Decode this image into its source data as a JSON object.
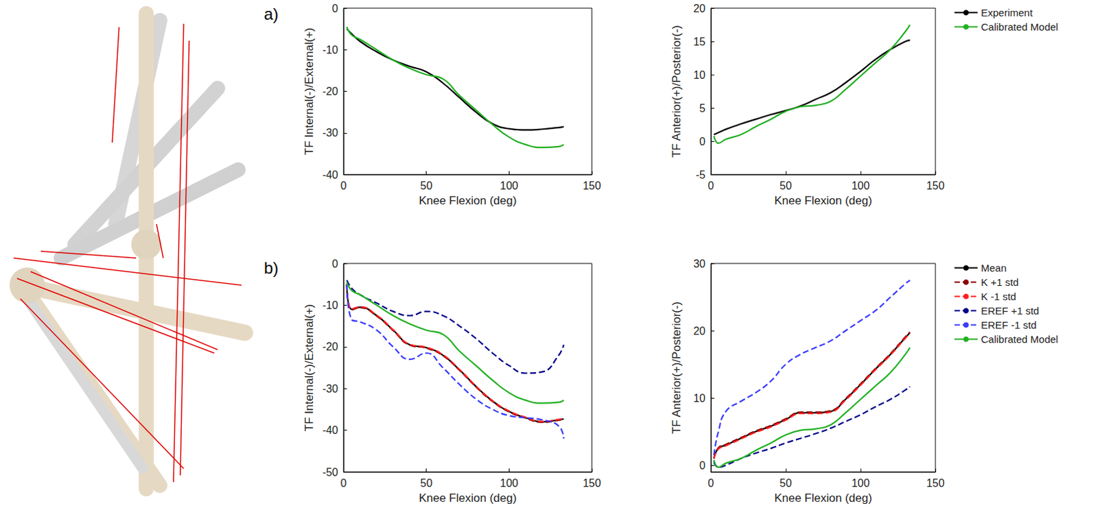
{
  "panel_labels": [
    "a)",
    "b)"
  ],
  "chart_data": [
    {
      "type": "line",
      "x_label": "Knee Flexion (deg)",
      "y_label": "TF Internal(-)/External(+)",
      "xlim": [
        0,
        150
      ],
      "xticks": [
        0,
        50,
        100,
        150
      ],
      "ylim": [
        -40,
        0
      ],
      "yticks": [
        -40,
        -30,
        -20,
        -10,
        0
      ],
      "grid": false,
      "x": [
        2,
        5,
        10,
        20,
        30,
        40,
        50,
        60,
        70,
        80,
        90,
        100,
        110,
        120,
        130,
        133
      ],
      "series": [
        {
          "name": "Experiment",
          "color": "#000000",
          "line_style": "solid",
          "marker": "none",
          "values": [
            -5,
            -6.2,
            -8,
            -10.5,
            -12.5,
            -14,
            -15.3,
            -18,
            -21.5,
            -25,
            -27.8,
            -29,
            -29.3,
            -29.1,
            -28.7,
            -28.5
          ]
        },
        {
          "name": "Calibrated Model",
          "color": "#22b022",
          "line_style": "solid",
          "marker": "none",
          "values": [
            -4.5,
            -6.5,
            -7.5,
            -10,
            -12.5,
            -14.5,
            -16,
            -17,
            -21,
            -24.5,
            -28,
            -31,
            -32.8,
            -33.5,
            -33.3,
            -32.8
          ]
        }
      ]
    },
    {
      "type": "line",
      "x_label": "Knee Flexion (deg)",
      "y_label": "TF Anterior(+)/Posterior(-)",
      "xlim": [
        0,
        150
      ],
      "xticks": [
        0,
        50,
        100,
        150
      ],
      "ylim": [
        -5,
        20
      ],
      "yticks": [
        -5,
        0,
        5,
        10,
        15,
        20
      ],
      "grid": false,
      "legend": "right",
      "x": [
        2,
        5,
        10,
        20,
        30,
        40,
        50,
        60,
        70,
        80,
        90,
        100,
        110,
        120,
        130,
        133
      ],
      "series": [
        {
          "name": "Experiment",
          "color": "#000000",
          "line_style": "solid",
          "marker": "none",
          "values": [
            1,
            1.3,
            1.8,
            2.6,
            3.3,
            4,
            4.6,
            5.3,
            6.3,
            7.3,
            8.8,
            10.5,
            12.3,
            13.8,
            15,
            15.2
          ]
        },
        {
          "name": "Calibrated Model",
          "color": "#22b022",
          "line_style": "solid",
          "marker": "none",
          "values": [
            0.8,
            -0.3,
            0.3,
            1,
            2.2,
            3.3,
            4.5,
            5.2,
            5.4,
            6,
            7.8,
            9.8,
            11.8,
            13.8,
            16.5,
            17.5
          ]
        }
      ]
    },
    {
      "type": "line",
      "x_label": "Knee Flexion (deg)",
      "y_label": "TF Internal(-)/External(+)",
      "xlim": [
        0,
        150
      ],
      "xticks": [
        0,
        50,
        100,
        150
      ],
      "ylim": [
        -50,
        0
      ],
      "yticks": [
        -50,
        -40,
        -30,
        -20,
        -10,
        0
      ],
      "grid": false,
      "x": [
        2,
        5,
        10,
        20,
        30,
        40,
        50,
        60,
        70,
        80,
        90,
        100,
        110,
        120,
        130,
        133
      ],
      "series": [
        {
          "name": "Mean",
          "color": "#000000",
          "line_style": "solid",
          "marker": "none",
          "values": [
            -5,
            -11,
            -10.5,
            -12.5,
            -16,
            -19.5,
            -20.2,
            -22,
            -25.5,
            -29.5,
            -33,
            -35.5,
            -37,
            -38,
            -37.5,
            -37.3
          ]
        },
        {
          "name": "K +1 std",
          "color": "#8b0000",
          "line_style": "dashed",
          "marker": "none",
          "values": [
            -5,
            -11.1,
            -10.6,
            -12.6,
            -16.1,
            -19.6,
            -20.3,
            -22.1,
            -25.6,
            -29.6,
            -33.1,
            -35.6,
            -37.1,
            -38.1,
            -37.6,
            -37.4
          ]
        },
        {
          "name": "K -1 std",
          "color": "#ff2020",
          "line_style": "dashed",
          "marker": "none",
          "values": [
            -5,
            -10.9,
            -10.4,
            -12.4,
            -15.9,
            -19.4,
            -20.1,
            -21.9,
            -25.4,
            -29.4,
            -32.9,
            -35.4,
            -36.9,
            -37.9,
            -37.4,
            -37.2
          ]
        },
        {
          "name": "EREF +1 std",
          "color": "#00008b",
          "line_style": "dashed",
          "marker": "none",
          "values": [
            -4,
            -6,
            -7.5,
            -9.5,
            -11.5,
            -12.5,
            -11.5,
            -12.5,
            -15,
            -18,
            -21.5,
            -24.5,
            -26.3,
            -26,
            -22,
            -19.5
          ]
        },
        {
          "name": "EREF -1 std",
          "color": "#3a3aff",
          "line_style": "dashed",
          "marker": "none",
          "values": [
            -5,
            -13.5,
            -14,
            -16,
            -20,
            -23,
            -21.5,
            -25,
            -29,
            -32.5,
            -35,
            -36.5,
            -37,
            -37.5,
            -39,
            -42
          ]
        },
        {
          "name": "Calibrated Model",
          "color": "#22b022",
          "line_style": "solid",
          "marker": "none",
          "values": [
            -4.5,
            -6.5,
            -7.5,
            -10,
            -12.5,
            -14.5,
            -16,
            -17,
            -21,
            -24.5,
            -28,
            -31,
            -32.8,
            -33.5,
            -33.3,
            -32.8
          ]
        }
      ]
    },
    {
      "type": "line",
      "x_label": "Knee Flexion (deg)",
      "y_label": "TF Anterior(+)/Posterior(-)",
      "xlim": [
        0,
        150
      ],
      "xticks": [
        0,
        50,
        100,
        150
      ],
      "ylim": [
        -1,
        30
      ],
      "yticks": [
        0,
        10,
        20,
        30
      ],
      "grid": false,
      "legend": "right",
      "x": [
        2,
        5,
        10,
        20,
        30,
        40,
        50,
        60,
        70,
        80,
        90,
        100,
        110,
        120,
        130,
        133
      ],
      "series": [
        {
          "name": "Mean",
          "color": "#000000",
          "line_style": "solid",
          "marker": "none",
          "values": [
            1,
            2.5,
            3,
            4,
            5,
            5.8,
            6.8,
            7.8,
            7.8,
            8,
            9.8,
            12,
            14.3,
            16.5,
            19,
            19.7
          ]
        },
        {
          "name": "K +1 std",
          "color": "#8b0000",
          "line_style": "dashed",
          "marker": "none",
          "values": [
            1,
            2.6,
            3.1,
            4.1,
            5.1,
            5.9,
            6.9,
            7.9,
            7.9,
            8.1,
            9.9,
            12.1,
            14.4,
            16.6,
            19.1,
            19.8
          ]
        },
        {
          "name": "K -1 std",
          "color": "#ff2020",
          "line_style": "dashed",
          "marker": "none",
          "values": [
            1,
            2.4,
            2.9,
            3.9,
            4.9,
            5.7,
            6.7,
            7.7,
            7.7,
            7.9,
            9.7,
            11.9,
            14.2,
            16.4,
            18.9,
            19.6
          ]
        },
        {
          "name": "EREF +1 std",
          "color": "#00008b",
          "line_style": "dashed",
          "marker": "none",
          "values": [
            0.5,
            -0.3,
            0,
            1,
            1.8,
            2.5,
            3.3,
            4,
            4.7,
            5.5,
            6.5,
            7.5,
            8.7,
            9.8,
            11.2,
            11.7
          ]
        },
        {
          "name": "EREF -1 std",
          "color": "#3a3aff",
          "line_style": "dashed",
          "marker": "none",
          "values": [
            1.5,
            5,
            8,
            9.5,
            10.8,
            12.5,
            15,
            16.5,
            17.5,
            18.5,
            20,
            21.5,
            23,
            25,
            27,
            27.5
          ]
        },
        {
          "name": "Calibrated Model",
          "color": "#22b022",
          "line_style": "solid",
          "marker": "none",
          "values": [
            0.8,
            -0.3,
            0.3,
            1,
            2.2,
            3.3,
            4.5,
            5.2,
            5.4,
            6,
            7.8,
            9.8,
            11.8,
            13.8,
            16.5,
            17.5
          ]
        }
      ]
    }
  ]
}
